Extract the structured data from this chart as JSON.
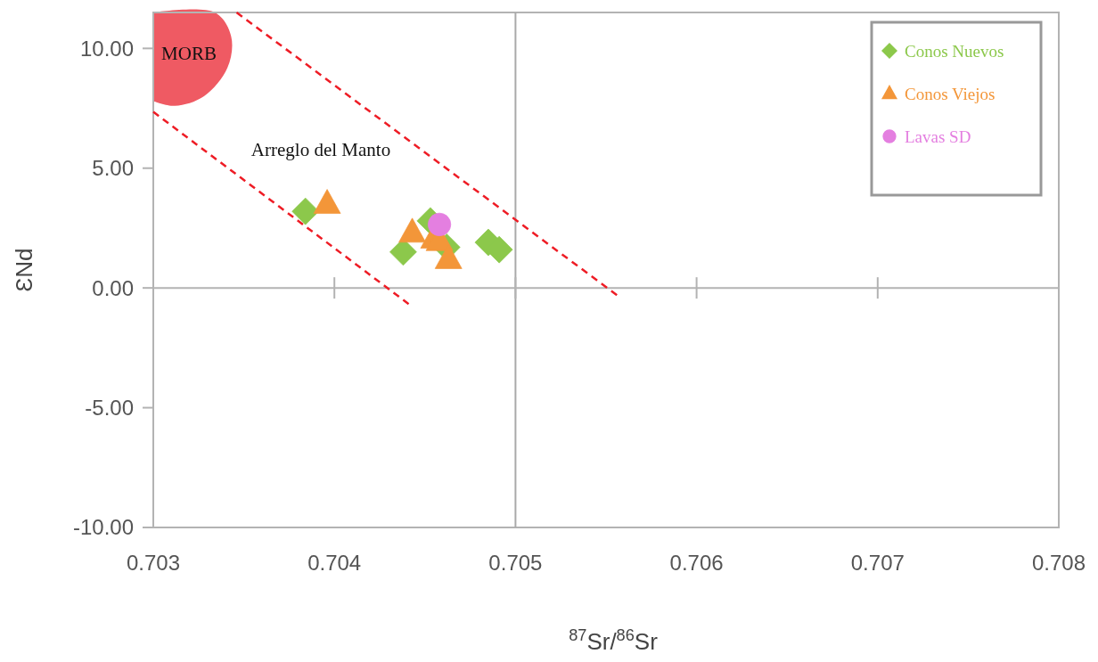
{
  "chart_data": {
    "type": "scatter",
    "xlabel": "$^{87}$Sr/$^{86}$Sr",
    "ylabel": "ƐNd",
    "xlim": [
      0.703,
      0.708
    ],
    "ylim": [
      -10,
      11.5
    ],
    "xticks": [
      0.703,
      0.704,
      0.705,
      0.706,
      0.707,
      0.708
    ],
    "yticks": [
      {
        "value": -10,
        "label": "-10.00"
      },
      {
        "value": -5,
        "label": "-5.00"
      },
      {
        "value": 0,
        "label": "0.00"
      },
      {
        "value": 5,
        "label": "5.00"
      },
      {
        "value": 10,
        "label": "10.00"
      }
    ],
    "grid": false,
    "legend": "top right",
    "ref_lines": [
      {
        "axis": "x",
        "value": 0.705,
        "color": "#aaaaaa"
      }
    ],
    "annotations": [
      "MORB",
      "Arreglo del Manto"
    ],
    "series": [
      {
        "name": "Conos Nuevos",
        "color": "#8cc84b",
        "marker": "diamond",
        "x": [
          0.70384,
          0.70438,
          0.70453,
          0.70462,
          0.70485,
          0.70491
        ],
        "values": [
          3.2,
          1.5,
          2.8,
          1.7,
          1.9,
          1.6
        ]
      },
      {
        "name": "Conos Viejos",
        "color": "#f39639",
        "marker": "triangle",
        "x": [
          0.70396,
          0.70443,
          0.70455,
          0.70458,
          0.70463
        ],
        "values": [
          3.5,
          2.3,
          2.05,
          1.95,
          1.2
        ]
      },
      {
        "name": "Lavas SD",
        "color": "#e47fe0",
        "marker": "circle",
        "x": [
          0.70458
        ],
        "values": [
          2.65
        ]
      },
      {
        "type": "line",
        "color": "#ee1c25",
        "marker": "none",
        "line_style": "dashed",
        "x": [
          0.70346,
          0.70556
        ],
        "values": [
          11.5,
          -0.3
        ]
      },
      {
        "type": "line",
        "color": "#ee1c25",
        "marker": "none",
        "line_style": "dashed",
        "x": [
          0.703,
          0.70441
        ],
        "values": [
          7.35,
          -0.67
        ]
      }
    ]
  }
}
